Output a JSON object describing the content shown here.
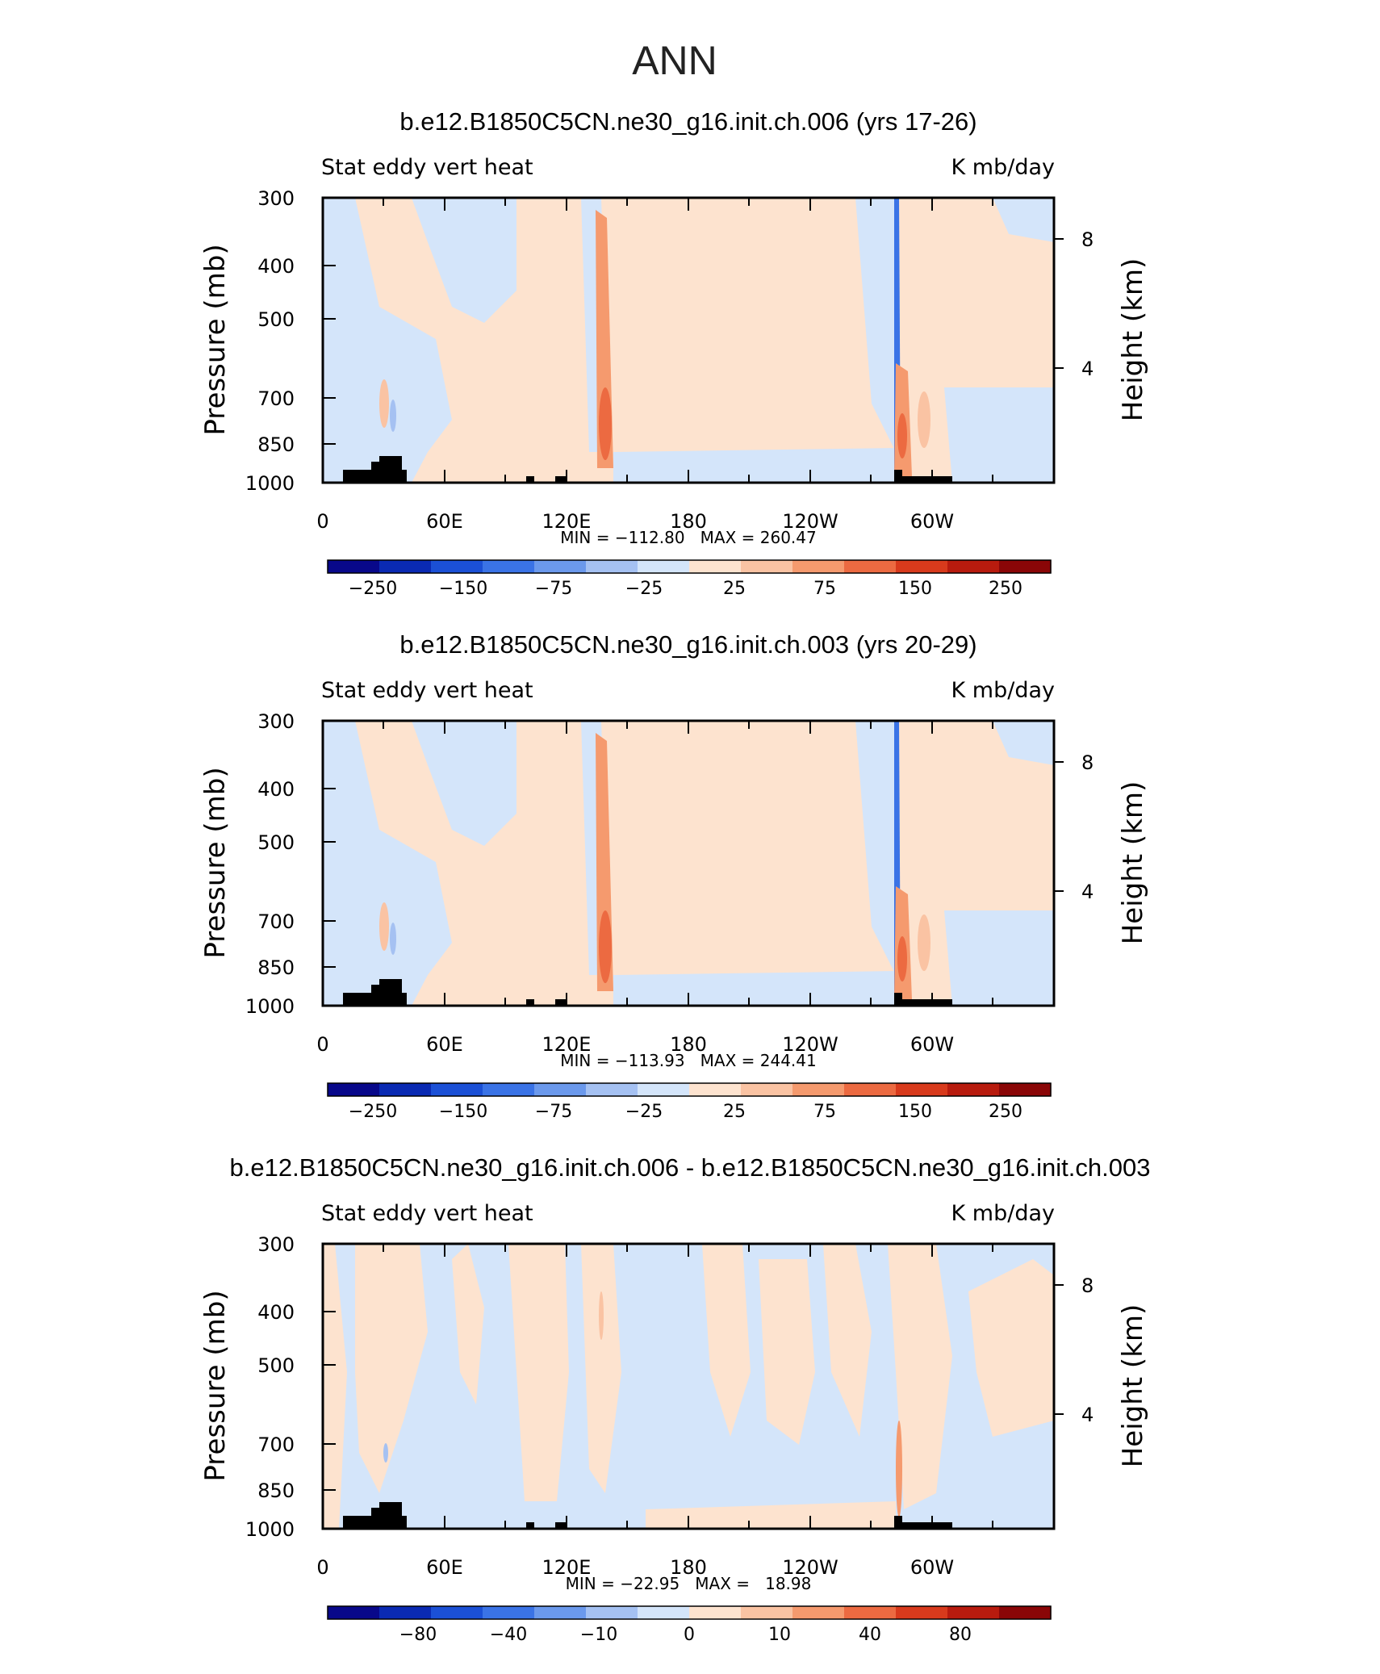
{
  "page": {
    "title": "ANN"
  },
  "chart_data": [
    {
      "type": "heatmap",
      "title": "b.e12.B1850C5CN.ne30_g16.init.ch.006 (yrs 17-26)",
      "left_label": "Stat eddy vert heat",
      "right_label": "K mb/day",
      "ylabel": "Pressure (mb)",
      "y2label": "Height (km)",
      "x_ticks": [
        "0",
        "60E",
        "120E",
        "180",
        "120W",
        "60W"
      ],
      "y_ticks": [
        "300",
        "400",
        "500",
        "700",
        "850",
        "1000"
      ],
      "y2_ticks": [
        "8",
        "4"
      ],
      "stats": "MIN = −112.80   MAX = 260.47",
      "colorbar_labels": [
        "−250",
        "−150",
        "−75",
        "−25",
        "25",
        "75",
        "150",
        "250"
      ],
      "min": -112.8,
      "max": 260.47,
      "features": [
        {
          "name": "positive-core",
          "lon": 137,
          "sign": "positive",
          "intensity": "strong"
        },
        {
          "name": "negative-band",
          "lon": 282,
          "sign": "negative",
          "intensity": "strong"
        },
        {
          "name": "positive-band",
          "lon": 287,
          "sign": "positive",
          "intensity": "moderate"
        }
      ]
    },
    {
      "type": "heatmap",
      "title": "b.e12.B1850C5CN.ne30_g16.init.ch.003 (yrs 20-29)",
      "left_label": "Stat eddy vert heat",
      "right_label": "K mb/day",
      "ylabel": "Pressure (mb)",
      "y2label": "Height (km)",
      "x_ticks": [
        "0",
        "60E",
        "120E",
        "180",
        "120W",
        "60W"
      ],
      "y_ticks": [
        "300",
        "400",
        "500",
        "700",
        "850",
        "1000"
      ],
      "y2_ticks": [
        "8",
        "4"
      ],
      "stats": "MIN = −113.93   MAX = 244.41",
      "colorbar_labels": [
        "−250",
        "−150",
        "−75",
        "−25",
        "25",
        "75",
        "150",
        "250"
      ],
      "min": -113.93,
      "max": 244.41,
      "features": [
        {
          "name": "positive-core",
          "lon": 137,
          "sign": "positive",
          "intensity": "strong"
        },
        {
          "name": "negative-band",
          "lon": 282,
          "sign": "negative",
          "intensity": "strong"
        },
        {
          "name": "positive-band",
          "lon": 287,
          "sign": "positive",
          "intensity": "moderate"
        }
      ]
    },
    {
      "type": "heatmap",
      "title": "b.e12.B1850C5CN.ne30_g16.init.ch.006 - b.e12.B1850C5CN.ne30_g16.init.ch.003",
      "left_label": "Stat eddy vert heat",
      "right_label": "K mb/day",
      "ylabel": "Pressure (mb)",
      "y2label": "Height (km)",
      "x_ticks": [
        "0",
        "60E",
        "120E",
        "180",
        "120W",
        "60W"
      ],
      "y_ticks": [
        "300",
        "400",
        "500",
        "700",
        "850",
        "1000"
      ],
      "y2_ticks": [
        "8",
        "4"
      ],
      "stats": "MIN = −22.95   MAX =   18.98",
      "colorbar_labels": [
        "−80",
        "−40",
        "−10",
        "0",
        "10",
        "40",
        "80"
      ],
      "min": -22.95,
      "max": 18.98,
      "features": [
        {
          "name": "positive-core",
          "lon": 285,
          "sign": "positive",
          "intensity": "moderate"
        }
      ]
    }
  ],
  "colors": {
    "blues": [
      "#08088a",
      "#0a2ab3",
      "#1b50d6",
      "#3a73e6",
      "#6b99ec",
      "#a5c1f2",
      "#d4e5fa"
    ],
    "reds": [
      "#fde3cf",
      "#fac3a3",
      "#f59a6e",
      "#ec6a41",
      "#d83a1c",
      "#b81b0e",
      "#8a0607"
    ],
    "land": "#000000"
  }
}
